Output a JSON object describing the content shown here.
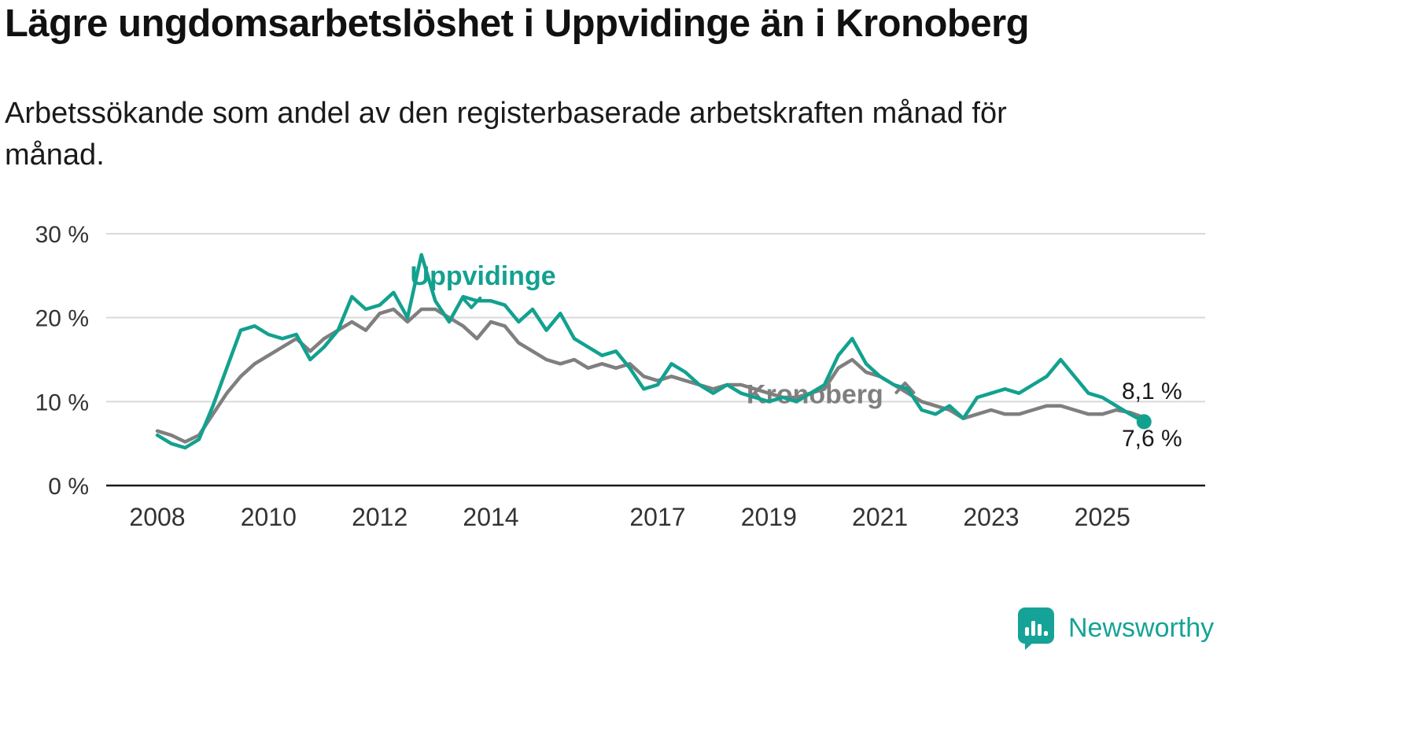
{
  "header": {
    "title": "Lägre ungdomsarbetslöshet i Uppvidinge än i Kronoberg",
    "subtitle": "Arbetssökande som andel av den registerbaserade arbetskraften månad för\nmånad."
  },
  "chart_data": {
    "type": "line",
    "title": "Lägre ungdomsarbetslöshet i Uppvidinge än i Kronoberg",
    "xlabel": "",
    "ylabel": "",
    "unit": "%",
    "grid": true,
    "x_ticks": [
      2008,
      2010,
      2012,
      2014,
      2017,
      2019,
      2021,
      2023,
      2025
    ],
    "y_ticks": [
      0,
      10,
      20,
      30
    ],
    "y_tick_suffix": " %",
    "xlim": [
      2007.08,
      2026.85
    ],
    "ylim": [
      0,
      30
    ],
    "colors": {
      "grid": "#d9d9d9",
      "axis": "#1a1a1a",
      "tick_text": "#333333",
      "label_text": "#1a1a1a"
    },
    "x": [
      2008.0,
      2008.25,
      2008.5,
      2008.75,
      2009.0,
      2009.25,
      2009.5,
      2009.75,
      2010.0,
      2010.25,
      2010.5,
      2010.75,
      2011.0,
      2011.25,
      2011.5,
      2011.75,
      2012.0,
      2012.25,
      2012.5,
      2012.75,
      2013.0,
      2013.25,
      2013.5,
      2013.75,
      2014.0,
      2014.25,
      2014.5,
      2014.75,
      2015.0,
      2015.25,
      2015.5,
      2015.75,
      2016.0,
      2016.25,
      2016.5,
      2016.75,
      2017.0,
      2017.25,
      2017.5,
      2017.75,
      2018.0,
      2018.25,
      2018.5,
      2018.75,
      2019.0,
      2019.25,
      2019.5,
      2019.75,
      2020.0,
      2020.25,
      2020.5,
      2020.75,
      2021.0,
      2021.25,
      2021.5,
      2021.75,
      2022.0,
      2022.25,
      2022.5,
      2022.75,
      2023.0,
      2023.25,
      2023.5,
      2023.75,
      2024.0,
      2024.25,
      2024.5,
      2024.75,
      2025.0,
      2025.25,
      2025.5,
      2025.75
    ],
    "series": [
      {
        "name": "Kronoberg",
        "color": "#7f7f7f",
        "values": [
          6.5,
          6.0,
          5.2,
          6.0,
          8.5,
          11.0,
          13.0,
          14.5,
          15.5,
          16.5,
          17.5,
          16.0,
          17.5,
          18.5,
          19.5,
          18.5,
          20.5,
          21.0,
          19.5,
          21.0,
          21.0,
          20.0,
          19.0,
          17.5,
          19.5,
          19.0,
          17.0,
          16.0,
          15.0,
          14.5,
          15.0,
          14.0,
          14.5,
          14.0,
          14.5,
          13.0,
          12.5,
          13.0,
          12.5,
          12.0,
          11.5,
          12.0,
          12.0,
          11.5,
          11.0,
          10.5,
          10.5,
          11.0,
          11.5,
          14.0,
          15.0,
          13.5,
          13.0,
          12.0,
          11.0,
          10.0,
          9.5,
          9.0,
          8.0,
          8.5,
          9.0,
          8.5,
          8.5,
          9.0,
          9.5,
          9.5,
          9.0,
          8.5,
          8.5,
          9.0,
          8.7,
          8.1
        ],
        "end_value": 8.1,
        "end_label": "8,1 %",
        "end_label_pos": {
          "x": 2025.35,
          "y": 10.3
        },
        "end_dot": false,
        "label_pos": {
          "x": 2018.6,
          "y": 9.8
        },
        "pointer": {
          "x": 2021.45,
          "y": 12.2,
          "dir": "up"
        }
      },
      {
        "name": "Uppvidinge",
        "color": "#13a18f",
        "values": [
          6.0,
          5.0,
          4.5,
          5.5,
          9.5,
          14.0,
          18.5,
          19.0,
          18.0,
          17.5,
          18.0,
          15.0,
          16.5,
          18.5,
          22.5,
          21.0,
          21.5,
          23.0,
          20.0,
          27.5,
          22.0,
          19.5,
          22.5,
          22.0,
          22.0,
          21.5,
          19.5,
          21.0,
          18.5,
          20.5,
          17.5,
          16.5,
          15.5,
          16.0,
          14.0,
          11.5,
          12.0,
          14.5,
          13.5,
          12.0,
          11.0,
          12.0,
          11.0,
          10.5,
          10.0,
          10.5,
          10.0,
          11.0,
          12.0,
          15.5,
          17.5,
          14.5,
          13.0,
          12.0,
          11.5,
          9.0,
          8.5,
          9.5,
          8.0,
          10.5,
          11.0,
          11.5,
          11.0,
          12.0,
          13.0,
          15.0,
          13.0,
          11.0,
          10.5,
          9.5,
          8.5,
          7.6
        ],
        "end_value": 7.6,
        "end_label": "7,6 %",
        "end_label_pos": {
          "x": 2025.35,
          "y": 4.7
        },
        "end_dot": true,
        "label_pos": {
          "x": 2012.55,
          "y": 23.9
        },
        "pointer": {
          "x": 2013.65,
          "y": 21.2,
          "dir": "down"
        }
      }
    ]
  },
  "footer": {
    "brand": "Newsworthy"
  }
}
